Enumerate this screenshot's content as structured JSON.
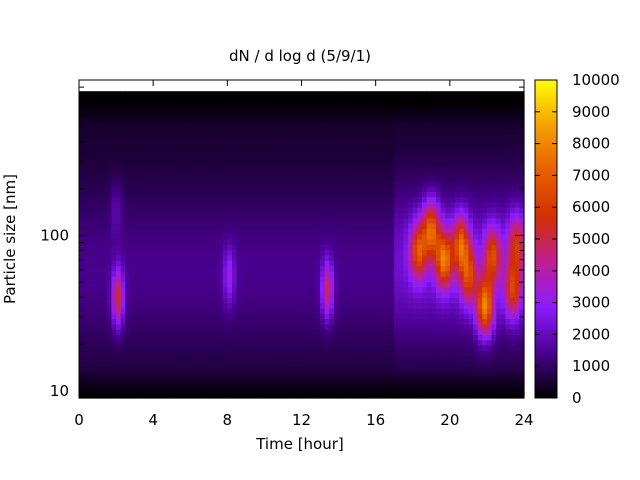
{
  "chart_data": {
    "type": "heatmap",
    "title": "dN / d log d (5/9/1)",
    "xlabel": "Time [hour]",
    "ylabel": "Particle size [nm]",
    "xlim": [
      0,
      24
    ],
    "x_ticks": [
      0,
      4,
      8,
      12,
      16,
      20,
      24
    ],
    "y_scale": "log",
    "ylim_nm": [
      9,
      1000
    ],
    "y_ticks": [
      10,
      100
    ],
    "colorbar": {
      "min": 0,
      "max": 10000,
      "ticks": [
        0,
        1000,
        2000,
        3000,
        4000,
        5000,
        6000,
        7000,
        8000,
        9000,
        10000
      ],
      "palette": [
        "#000000",
        "#4a0090",
        "#8c1cff",
        "#c02090",
        "#d03000",
        "#e86000",
        "#f4a000",
        "#ffff00"
      ]
    },
    "grid": false,
    "background_value": 1000,
    "hotspots": [
      {
        "time_h": 2.1,
        "size_nm": 40,
        "value": 5000
      },
      {
        "time_h": 2.0,
        "size_nm": 150,
        "value": 1800
      },
      {
        "time_h": 8.1,
        "size_nm": 55,
        "value": 2800
      },
      {
        "time_h": 13.4,
        "size_nm": 45,
        "value": 4500
      },
      {
        "time_h": 18.3,
        "size_nm": 80,
        "value": 5800
      },
      {
        "time_h": 19.0,
        "size_nm": 110,
        "value": 6300
      },
      {
        "time_h": 19.7,
        "size_nm": 70,
        "value": 6700
      },
      {
        "time_h": 20.6,
        "size_nm": 90,
        "value": 6000
      },
      {
        "time_h": 21.0,
        "size_nm": 55,
        "value": 5200
      },
      {
        "time_h": 21.9,
        "size_nm": 35,
        "value": 7200
      },
      {
        "time_h": 22.3,
        "size_nm": 75,
        "value": 5500
      },
      {
        "time_h": 23.4,
        "size_nm": 45,
        "value": 5200
      },
      {
        "time_h": 23.6,
        "size_nm": 90,
        "value": 4800
      }
    ]
  }
}
